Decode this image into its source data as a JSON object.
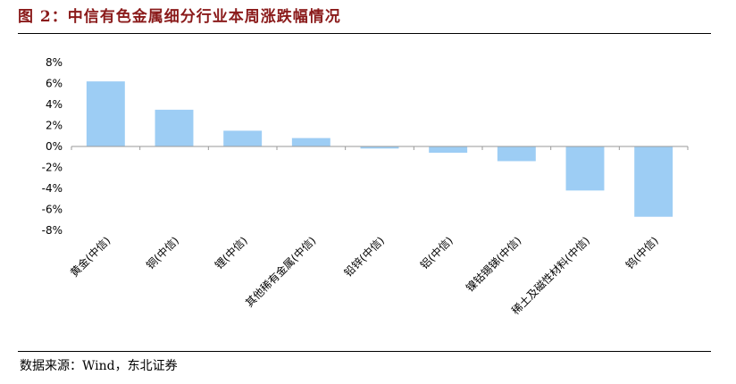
{
  "figure": {
    "title": "图 2：中信有色金属细分行业本周涨跌幅情况",
    "source": "数据来源：Wind，东北证券"
  },
  "colors": {
    "bar": "#9dcdf4",
    "title": "#8a1a1a",
    "axis": "#9a9a9a"
  },
  "chart_data": {
    "type": "bar",
    "title": "",
    "xlabel": "",
    "ylabel": "",
    "categories": [
      "黄金(中信)",
      "铜(中信)",
      "锂(中信)",
      "其他稀有金属(中信)",
      "铅锌(中信)",
      "铝(中信)",
      "镍钴锡锑(中信)",
      "稀土及磁性材料(中信)",
      "钨(中信)"
    ],
    "values": [
      6.2,
      3.5,
      1.5,
      0.8,
      -0.2,
      -0.6,
      -1.4,
      -4.2,
      -6.7
    ],
    "ylim": [
      -8,
      8
    ],
    "yticks": [
      8,
      6,
      4,
      2,
      0,
      -2,
      -4,
      -6,
      -8
    ],
    "ytick_format": "percent",
    "grid": false,
    "legend": "none"
  }
}
